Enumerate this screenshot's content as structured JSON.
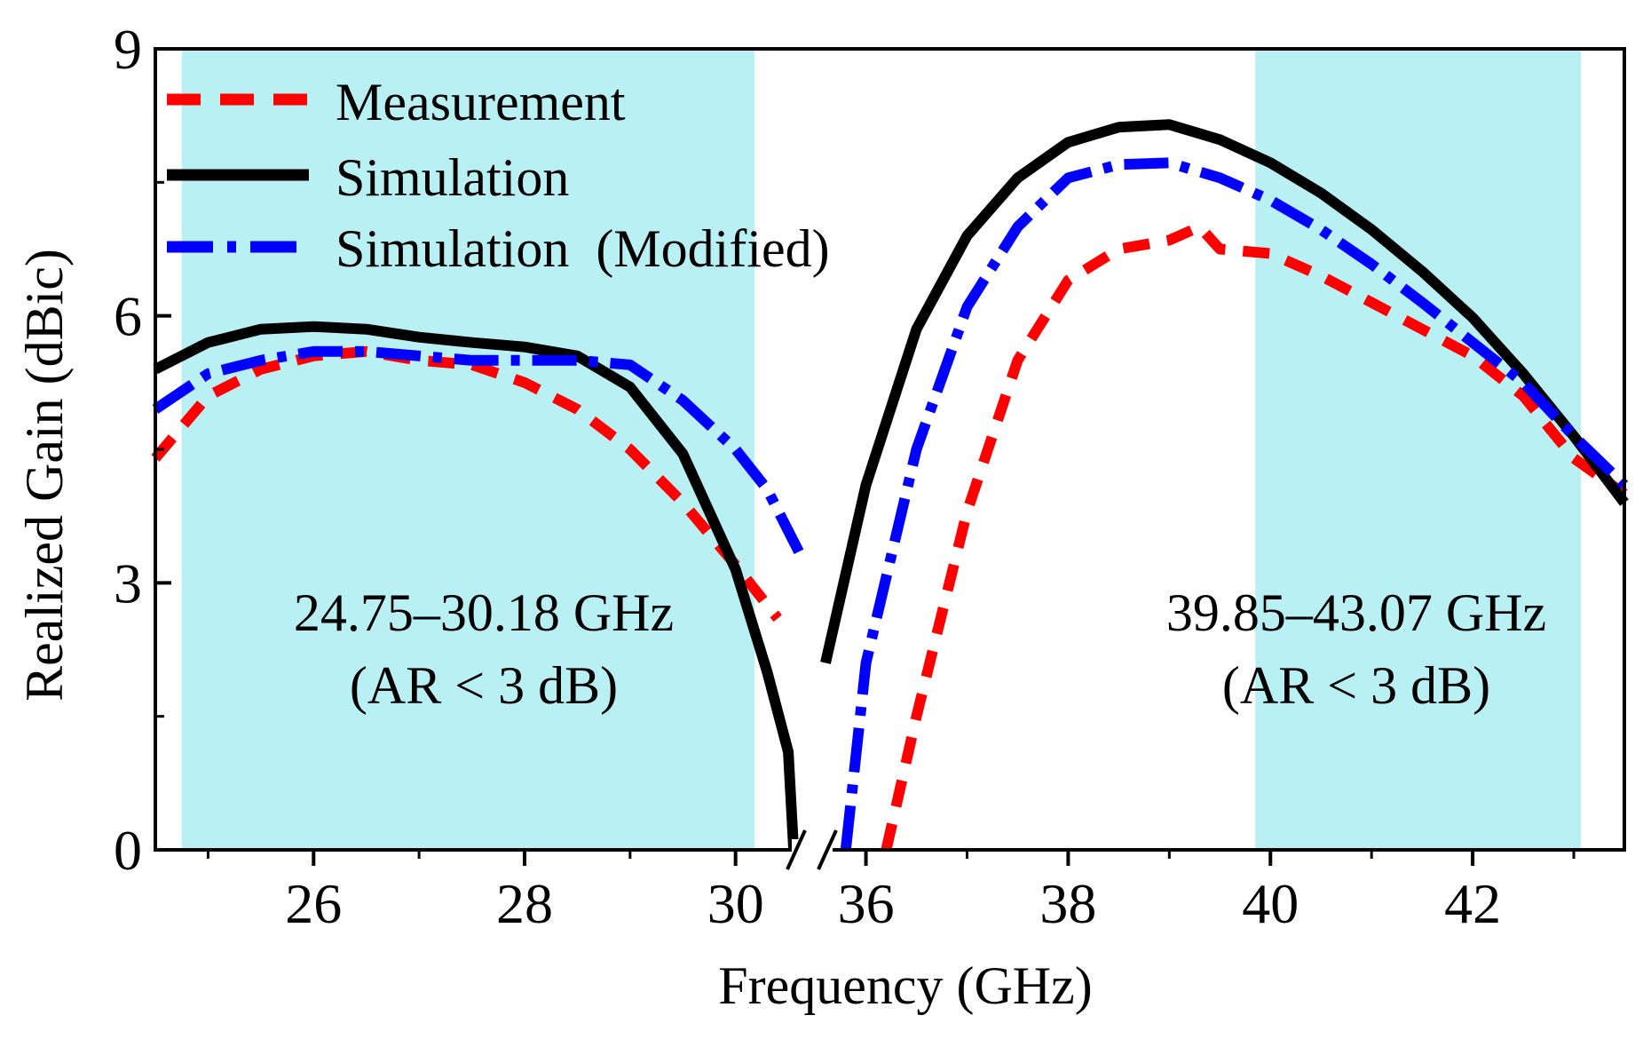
{
  "chart_data": {
    "type": "line",
    "xlabel": "Frequency (GHz)",
    "ylabel": "Realized Gain (dBic)",
    "broken_x_axis": true,
    "panels": [
      {
        "xlim": [
          24.5,
          30.6
        ],
        "xticks": [
          26,
          28,
          30
        ],
        "minor_xticks": [
          25,
          27,
          29
        ]
      },
      {
        "xlim": [
          35.6,
          43.5
        ],
        "xticks": [
          36,
          38,
          40,
          42
        ],
        "minor_xticks": [
          37,
          39,
          41,
          43
        ]
      }
    ],
    "ylim": [
      0,
      9
    ],
    "yticks": [
      0,
      3,
      6,
      9
    ],
    "minor_yticks": [
      1.5,
      4.5,
      7.5
    ],
    "x_tick_labels": [
      "26",
      "28",
      "30",
      "36",
      "38",
      "40",
      "42"
    ],
    "y_tick_labels": [
      "0",
      "3",
      "6",
      "9"
    ],
    "legend_position": "top-left",
    "shaded_bands": [
      {
        "x": [
          24.75,
          30.18
        ],
        "label_line1": "24.75–30.18 GHz",
        "label_line2": "(AR < 3 dB)",
        "color": "#7fe3ea"
      },
      {
        "x": [
          39.85,
          43.07
        ],
        "label_line1": "39.85–43.07 GHz",
        "label_line2": "(AR < 3 dB)",
        "color": "#7fe3ea"
      }
    ],
    "series": [
      {
        "name": "Measurement",
        "color": "#ff0000",
        "style": "dashed",
        "left": {
          "x": [
            24.5,
            25.0,
            25.5,
            26.0,
            26.5,
            27.0,
            27.5,
            28.0,
            28.5,
            29.0,
            29.5,
            30.0,
            30.4
          ],
          "y": [
            4.4,
            5.1,
            5.4,
            5.55,
            5.6,
            5.5,
            5.45,
            5.25,
            4.95,
            4.5,
            3.9,
            3.2,
            2.6
          ]
        },
        "right": {
          "x": [
            36.2,
            36.5,
            37.0,
            37.5,
            38.0,
            38.5,
            39.0,
            39.3,
            39.5,
            40.0,
            40.5,
            41.0,
            41.5,
            42.0,
            42.5,
            43.0,
            43.5
          ],
          "y": [
            0.0,
            1.5,
            3.8,
            5.5,
            6.4,
            6.75,
            6.85,
            7.0,
            6.75,
            6.7,
            6.45,
            6.15,
            5.85,
            5.55,
            5.1,
            4.4,
            4.0
          ]
        }
      },
      {
        "name": "Simulation",
        "color": "#000000",
        "style": "solid",
        "left": {
          "x": [
            24.5,
            25.0,
            25.5,
            26.0,
            26.5,
            27.0,
            27.5,
            28.0,
            28.5,
            29.0,
            29.5,
            30.0,
            30.3,
            30.5,
            30.55
          ],
          "y": [
            5.4,
            5.7,
            5.85,
            5.88,
            5.85,
            5.76,
            5.7,
            5.65,
            5.55,
            5.2,
            4.45,
            3.15,
            2.0,
            1.1,
            0.0
          ]
        },
        "right": {
          "x": [
            35.6,
            36.0,
            36.5,
            37.0,
            37.5,
            38.0,
            38.5,
            39.0,
            39.5,
            40.0,
            40.5,
            41.0,
            41.5,
            42.0,
            42.5,
            43.0,
            43.5
          ],
          "y": [
            2.1,
            4.1,
            5.85,
            6.9,
            7.55,
            7.95,
            8.12,
            8.15,
            7.98,
            7.72,
            7.38,
            6.97,
            6.5,
            5.98,
            5.35,
            4.65,
            3.9
          ]
        }
      },
      {
        "name": "Simulation  (Modified)",
        "color": "#0000ff",
        "style": "dashdot",
        "left": {
          "x": [
            24.5,
            25.0,
            25.5,
            26.0,
            26.5,
            27.0,
            27.5,
            28.0,
            28.5,
            29.0,
            29.5,
            30.0,
            30.3,
            30.6
          ],
          "y": [
            4.95,
            5.35,
            5.5,
            5.6,
            5.6,
            5.55,
            5.5,
            5.5,
            5.5,
            5.45,
            5.05,
            4.5,
            4.05,
            3.35
          ]
        },
        "right": {
          "x": [
            35.8,
            36.0,
            36.5,
            37.0,
            37.5,
            38.0,
            38.5,
            39.0,
            39.5,
            40.0,
            40.5,
            41.0,
            41.5,
            42.0,
            42.5,
            43.0,
            43.5
          ],
          "y": [
            0.0,
            2.1,
            4.5,
            6.1,
            7.0,
            7.55,
            7.7,
            7.72,
            7.55,
            7.3,
            6.97,
            6.58,
            6.15,
            5.7,
            5.25,
            4.65,
            4.1
          ]
        }
      }
    ]
  }
}
